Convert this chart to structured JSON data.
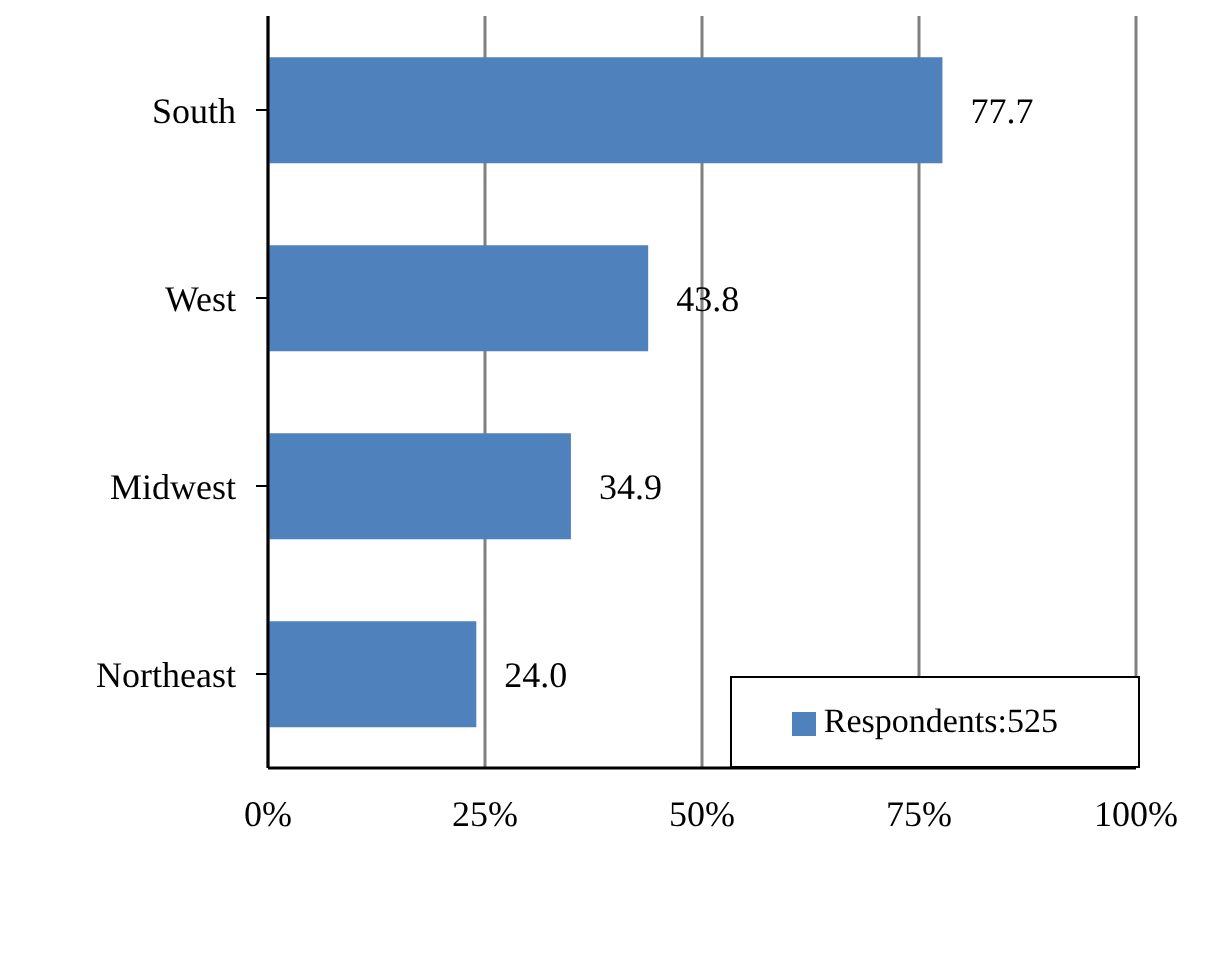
{
  "chart_data": {
    "type": "bar",
    "orientation": "horizontal",
    "categories": [
      "South",
      "West",
      "Midwest",
      "Northeast"
    ],
    "series": [
      {
        "name": "Respondents:525",
        "color": "#4f81bd",
        "values": [
          77.7,
          43.8,
          34.9,
          24.0
        ],
        "value_labels": [
          "77.7",
          "43.8",
          "34.9",
          "24.0"
        ]
      }
    ],
    "xlim": [
      0,
      100
    ],
    "xticks": [
      {
        "value": 0,
        "label": "0%"
      },
      {
        "value": 25,
        "label": "25%"
      },
      {
        "value": 50,
        "label": "50%"
      },
      {
        "value": 75,
        "label": "75%"
      },
      {
        "value": 100,
        "label": "100%"
      }
    ],
    "grid": "x",
    "legend": "bottom right"
  }
}
